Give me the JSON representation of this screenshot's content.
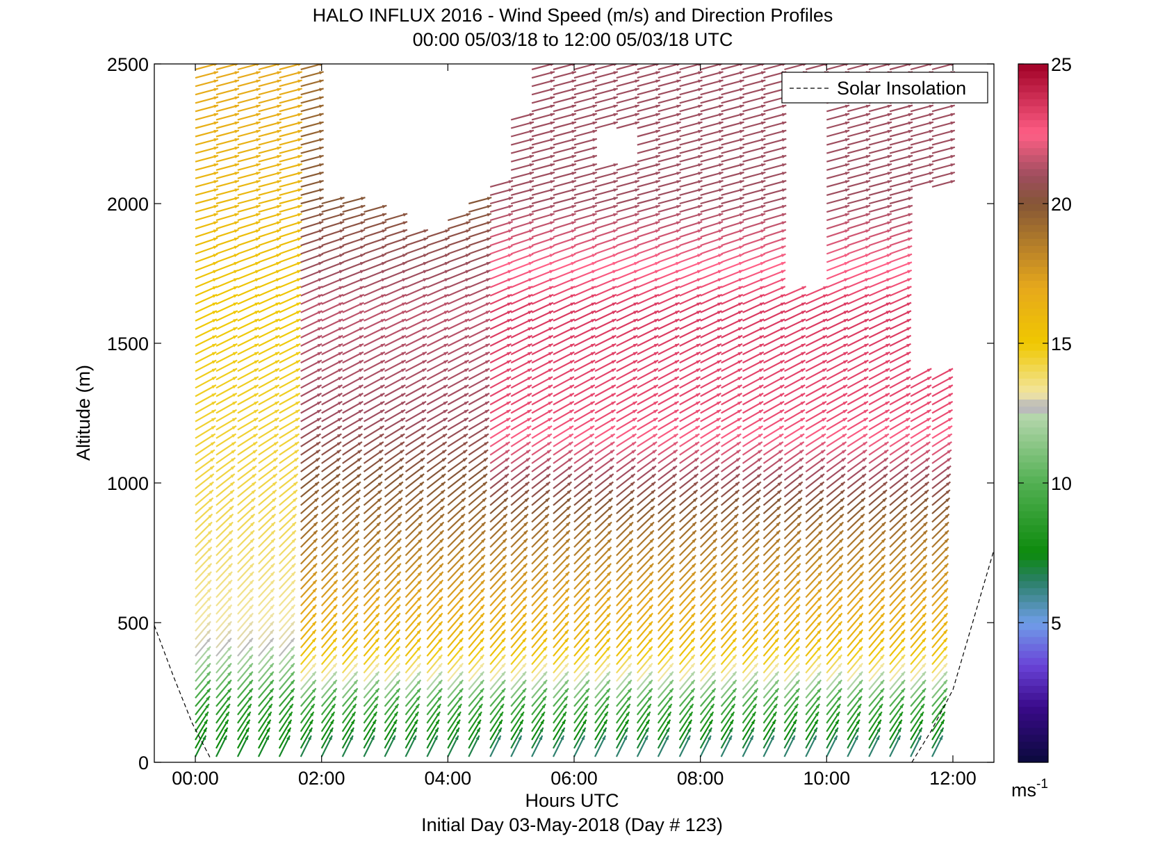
{
  "chart_data": {
    "type": "wind-barb-profile",
    "title": "HALO INFLUX 2016 - Wind Speed (m/s) and Direction Profiles",
    "subtitle": "00:00 05/03/18 to 12:00 05/03/18  UTC",
    "xlabel": "Hours UTC",
    "ylabel": "Altitude (m)",
    "footer": "Initial Day 03-May-2018 (Day # 123)",
    "xlim": [
      -0.65,
      12.65
    ],
    "ylim": [
      0,
      2500
    ],
    "x_ticks": [
      0,
      2,
      4,
      6,
      8,
      10,
      12
    ],
    "x_tick_labels": [
      "00:00",
      "02:00",
      "04:00",
      "06:00",
      "08:00",
      "10:00",
      "12:00"
    ],
    "y_ticks": [
      0,
      500,
      1000,
      1500,
      2000,
      2500
    ],
    "y_tick_labels": [
      "0",
      "500",
      "1000",
      "1500",
      "2000",
      "2500"
    ],
    "grid": false,
    "legend": {
      "position": "top-right",
      "entries": [
        {
          "label": "Solar Insolation",
          "style": "dashed",
          "color": "#000000"
        }
      ]
    },
    "colorbar": {
      "range": [
        0,
        25
      ],
      "ticks": [
        5,
        10,
        15,
        20,
        25
      ],
      "tick_labels": [
        "5",
        "10",
        "15",
        "20",
        "25"
      ],
      "unit": "ms",
      "unit_exp": "-1",
      "stops": [
        [
          0,
          "#0a0a3c"
        ],
        [
          2,
          "#3a0a8a"
        ],
        [
          3.5,
          "#6a44d8"
        ],
        [
          5,
          "#6f9ee8"
        ],
        [
          6.5,
          "#2a7f66"
        ],
        [
          7.5,
          "#0c8a0c"
        ],
        [
          10,
          "#52b052"
        ],
        [
          12.5,
          "#b9d8b0"
        ],
        [
          12.6,
          "#bbbbbb"
        ],
        [
          12.8,
          "#bbbbbb"
        ],
        [
          13.2,
          "#f2e6a2"
        ],
        [
          15,
          "#f0c800"
        ],
        [
          17,
          "#e6a81c"
        ],
        [
          20,
          "#855636"
        ],
        [
          21,
          "#9e4d5e"
        ],
        [
          22.5,
          "#ff5f86"
        ],
        [
          25,
          "#a00026"
        ]
      ]
    },
    "solar_insolation": [
      {
        "x": [
          -0.65,
          -0.35,
          -0.05,
          0.25
        ],
        "y": [
          490,
          310,
          140,
          10
        ]
      },
      {
        "x": [
          11.35,
          11.65,
          12.0,
          12.65
        ],
        "y": [
          0,
          110,
          260,
          760
        ]
      }
    ],
    "profile_times": [
      0.0,
      0.33,
      0.67,
      1.0,
      1.33,
      1.67,
      2.0,
      2.33,
      2.67,
      3.0,
      3.33,
      3.67,
      4.0,
      4.33,
      4.67,
      5.0,
      5.33,
      5.67,
      6.0,
      6.33,
      6.67,
      7.0,
      7.33,
      7.67,
      8.0,
      8.33,
      8.67,
      9.0,
      9.33,
      9.67,
      10.0,
      10.33,
      10.67,
      11.0,
      11.33,
      11.67
    ],
    "profile_top_altitude": [
      2480,
      2480,
      2480,
      2480,
      2480,
      2480,
      2020,
      2000,
      1980,
      1960,
      1900,
      1880,
      1950,
      2000,
      2080,
      2320,
      2480,
      2480,
      2480,
      2480,
      2480,
      2480,
      2480,
      2480,
      2480,
      2480,
      2480,
      2480,
      2480,
      2480,
      2480,
      2480,
      2480,
      2480,
      2480,
      2480
    ],
    "profile_gaps": [
      {
        "time": 6.33,
        "from": 2140,
        "to": 2260
      },
      {
        "time": 6.67,
        "from": 2140,
        "to": 2260
      },
      {
        "time": 9.33,
        "from": 1700,
        "to": 2380
      },
      {
        "time": 9.67,
        "from": 1700,
        "to": 2380
      },
      {
        "time": 11.33,
        "from": 1400,
        "to": 2050
      },
      {
        "time": 11.67,
        "from": 1400,
        "to": 2050
      }
    ],
    "level_spacing_m": 30,
    "wind_speed_ms": {
      "altitude": [
        0,
        100,
        200,
        280,
        400,
        800,
        1200,
        1600,
        2000,
        2500
      ],
      "early_profiles_00_to_01": [
        7,
        8,
        9,
        11,
        13,
        14,
        14.5,
        15,
        16,
        17
      ],
      "morning_profiles_02_to_04": [
        6.5,
        8,
        10,
        13,
        16,
        19,
        21,
        21.5,
        20,
        19
      ],
      "day_profiles_05_to_11": [
        6,
        8,
        10,
        13,
        16,
        19,
        23,
        23.5,
        21,
        21
      ]
    },
    "wind_direction": {
      "altitude": [
        0,
        200,
        400,
        800,
        1200,
        1600,
        2000,
        2500
      ],
      "arrow_heading_deg_from_north": [
        25,
        40,
        40,
        45,
        60,
        65,
        75,
        75
      ],
      "convention": "arrow points downwind"
    }
  }
}
